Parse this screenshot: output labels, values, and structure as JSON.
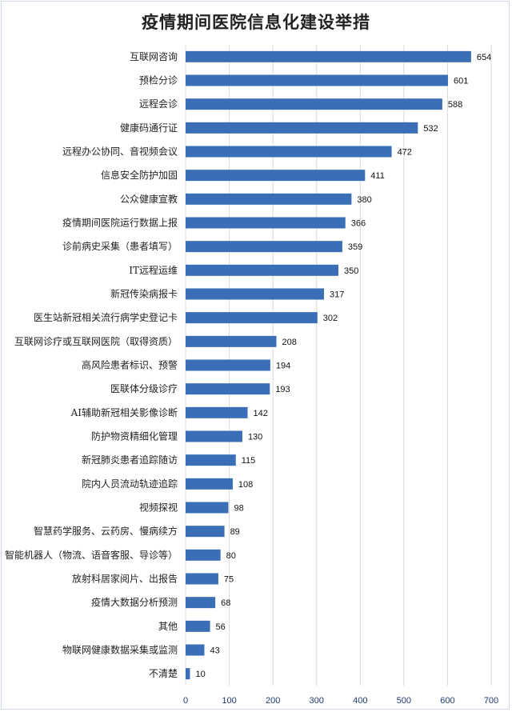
{
  "chart_data": {
    "type": "bar",
    "orientation": "horizontal",
    "title": "疫情期间医院信息化建设举措",
    "xlabel": "",
    "ylabel": "",
    "xlim": [
      0,
      700
    ],
    "x_ticks": [
      0,
      100,
      200,
      300,
      400,
      500,
      600,
      700
    ],
    "grid": true,
    "legend": "none",
    "bar_color": "#3a6fb8",
    "categories": [
      "互联网咨询",
      "预检分诊",
      "远程会诊",
      "健康码通行证",
      "远程办公协同、音视频会议",
      "信息安全防护加固",
      "公众健康宣教",
      "疫情期间医院运行数据上报",
      "诊前病史采集（患者填写）",
      "IT远程运维",
      "新冠传染病报卡",
      "医生站新冠相关流行病学史登记卡",
      "互联网诊疗或互联网医院（取得资质）",
      "高风险患者标识、预警",
      "医联体分级诊疗",
      "AI辅助新冠相关影像诊断",
      "防护物资精细化管理",
      "新冠肺炎患者追踪随访",
      "院内人员流动轨迹追踪",
      "视频探视",
      "智慧药学服务、云药房、慢病续方",
      "智能机器人（物流、语音客服、导诊等）",
      "放射科居家阅片、出报告",
      "疫情大数据分析预测",
      "其他",
      "物联网健康数据采集或监测",
      "不清楚"
    ],
    "values": [
      654,
      601,
      588,
      532,
      472,
      411,
      380,
      366,
      359,
      350,
      317,
      302,
      208,
      194,
      193,
      142,
      130,
      115,
      108,
      98,
      89,
      80,
      75,
      68,
      56,
      43,
      10
    ]
  }
}
